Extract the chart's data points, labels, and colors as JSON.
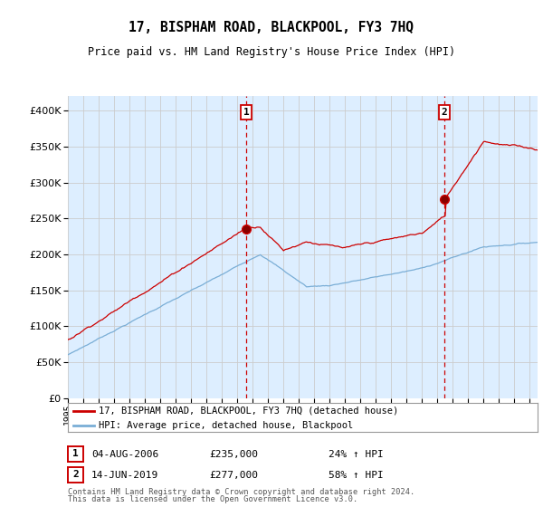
{
  "title": "17, BISPHAM ROAD, BLACKPOOL, FY3 7HQ",
  "subtitle": "Price paid vs. HM Land Registry's House Price Index (HPI)",
  "legend_line1": "17, BISPHAM ROAD, BLACKPOOL, FY3 7HQ (detached house)",
  "legend_line2": "HPI: Average price, detached house, Blackpool",
  "transaction1_year": 2006.59,
  "transaction1_price": 235000,
  "transaction1_text": "04-AUG-2006",
  "transaction1_hpi_text": "24% ↑ HPI",
  "transaction2_year": 2019.45,
  "transaction2_price": 277000,
  "transaction2_text": "14-JUN-2019",
  "transaction2_hpi_text": "58% ↑ HPI",
  "footnote1": "Contains HM Land Registry data © Crown copyright and database right 2024.",
  "footnote2": "This data is licensed under the Open Government Licence v3.0.",
  "red_color": "#cc0000",
  "blue_color": "#7aaed6",
  "plot_bg": "#ddeeff",
  "background_color": "#ffffff",
  "grid_color": "#cccccc",
  "ylim_max": 420000,
  "yticks": [
    0,
    50000,
    100000,
    150000,
    200000,
    250000,
    300000,
    350000,
    400000
  ],
  "xstart": 1995.0,
  "xend": 2025.5
}
